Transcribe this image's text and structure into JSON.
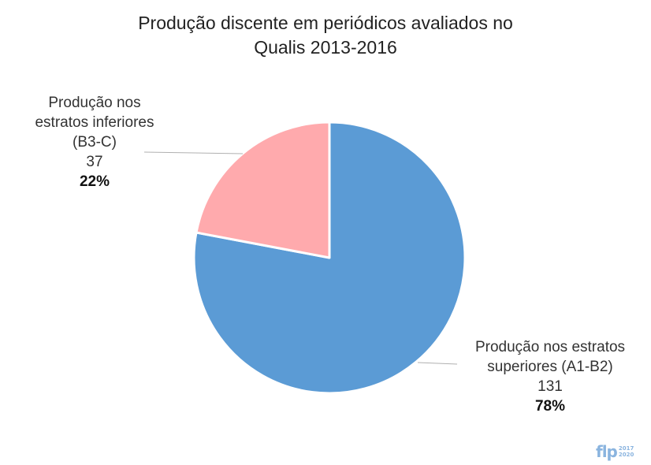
{
  "title_lines": [
    "Produção discente em periódicos avaliados no",
    "Qualis 2013-2016"
  ],
  "chart_data": {
    "type": "pie",
    "title": "Produção discente em periódicos avaliados no Qualis 2013-2016",
    "slices": [
      {
        "label_lines": [
          "Produção nos estratos",
          "superiores (A1-B2)"
        ],
        "value": 131,
        "value_text": "131",
        "percent_text": "78%",
        "color": "#5b9bd5"
      },
      {
        "label_lines": [
          "Produção nos",
          "estratos inferiores",
          "(B3-C)"
        ],
        "value": 37,
        "value_text": "37",
        "percent_text": "22%",
        "color": "#ffaaad"
      }
    ],
    "start_angle": "12 o'clock",
    "direction": "clockwise",
    "legend": "none"
  },
  "logo": {
    "main": "flp",
    "year_top": "2017",
    "year_bottom": "2020",
    "color": "#8ab4df"
  }
}
